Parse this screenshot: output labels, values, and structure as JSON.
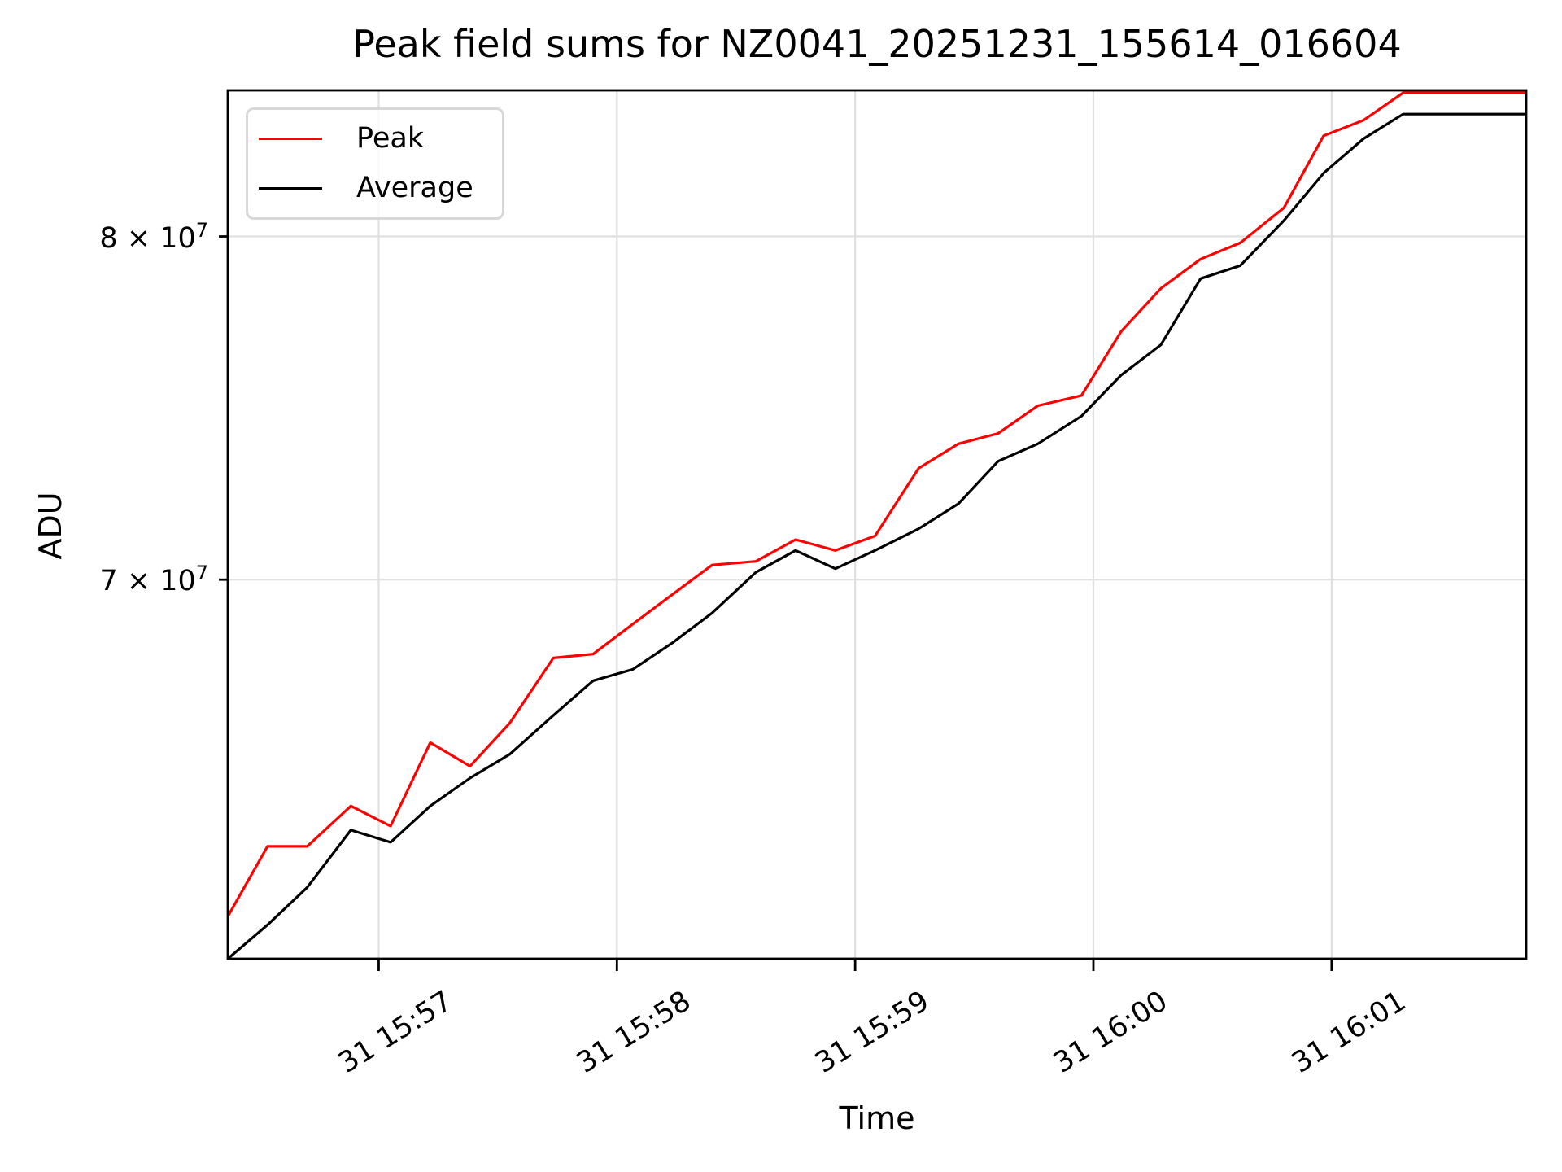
{
  "chart": {
    "title": "Peak field sums for NZ0041_20251231_155614_016604",
    "xlabel": "Time",
    "ylabel": "ADU"
  },
  "chart_data": {
    "type": "line",
    "title": "Peak field sums for NZ0041_20251231_155614_016604",
    "xlabel": "Time",
    "ylabel": "ADU",
    "y_scale": "log",
    "grid": true,
    "legend_position": "upper left",
    "ylim": [
      60400000,
      84680000
    ],
    "colors": {
      "grid": "#e0e0e0",
      "axis": "#000000",
      "background": "#ffffff",
      "legend_border": "#d8d8d8"
    },
    "x": [
      "15:56:22",
      "15:56:32",
      "15:56:42",
      "15:56:53",
      "15:57:03",
      "15:57:13",
      "15:57:23",
      "15:57:33",
      "15:57:44",
      "15:57:54",
      "15:58:04",
      "15:58:14",
      "15:58:24",
      "15:58:35",
      "15:58:45",
      "15:58:55",
      "15:59:05",
      "15:59:16",
      "15:59:26",
      "15:59:36",
      "15:59:46",
      "15:59:57",
      "16:00:07",
      "16:00:17",
      "16:00:27",
      "16:00:37",
      "16:00:48",
      "16:00:58",
      "16:01:08",
      "16:01:18",
      "16:01:28",
      "16:01:39",
      "16:01:49"
    ],
    "series": [
      {
        "name": "Peak",
        "color": "#ff0000",
        "values": [
          61400000,
          63100000,
          63100000,
          64100000,
          63600000,
          65700000,
          65100000,
          66200000,
          67900000,
          68000000,
          68800000,
          69600000,
          70400000,
          70500000,
          71100000,
          70800000,
          71200000,
          73100000,
          73800000,
          74100000,
          74900000,
          75200000,
          77100000,
          78400000,
          79300000,
          79800000,
          80900000,
          83200000,
          83700000,
          84600000,
          84600000,
          84600000,
          84600000
        ]
      },
      {
        "name": "Average",
        "color": "#000000",
        "values": [
          60400000,
          61200000,
          62100000,
          63500000,
          63200000,
          64100000,
          64800000,
          65400000,
          66400000,
          67300000,
          67600000,
          68300000,
          69100000,
          70200000,
          70800000,
          70300000,
          70800000,
          71400000,
          72100000,
          73300000,
          73800000,
          74600000,
          75800000,
          76700000,
          78700000,
          79100000,
          80500000,
          82000000,
          83100000,
          83900000,
          83900000,
          83900000,
          83900000
        ]
      }
    ],
    "x_ticks": [
      {
        "time": "15:57:00",
        "label": "31 15:57"
      },
      {
        "time": "15:58:00",
        "label": "31 15:58"
      },
      {
        "time": "15:59:00",
        "label": "31 15:59"
      },
      {
        "time": "16:00:00",
        "label": "31 16:00"
      },
      {
        "time": "16:01:00",
        "label": "31 16:01"
      }
    ],
    "y_ticks": [
      {
        "value": 80000000,
        "label": "8 × 10^7"
      },
      {
        "value": 70000000,
        "label": "7 × 10^7"
      }
    ]
  }
}
